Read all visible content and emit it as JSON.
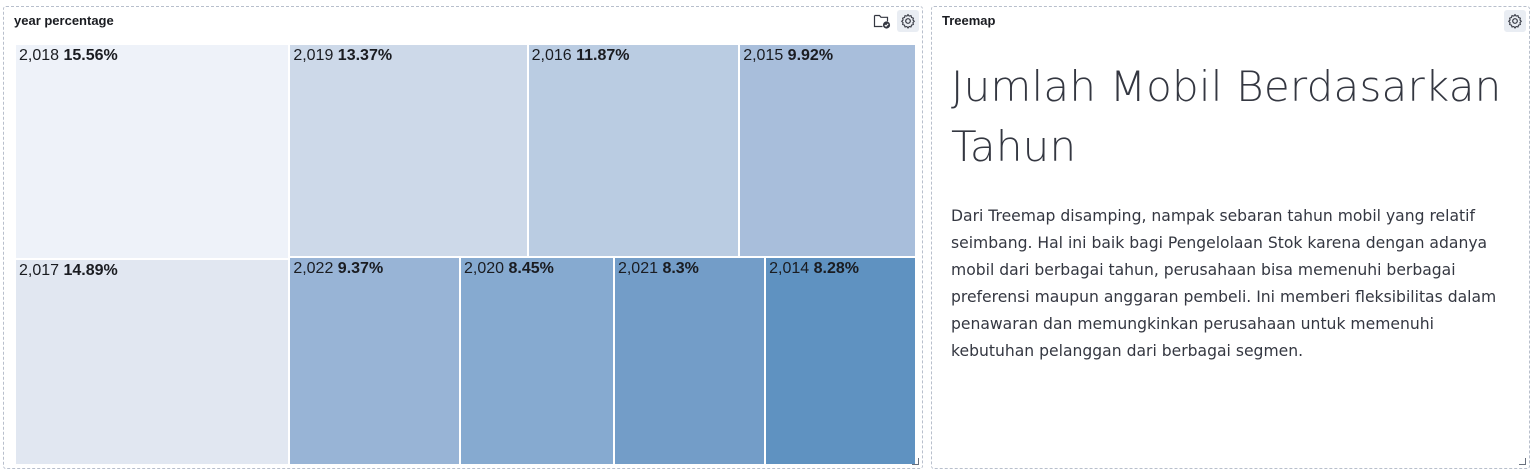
{
  "left_panel": {
    "title": "year percentage",
    "icons": [
      "folder-check-icon",
      "gear-icon"
    ]
  },
  "right_panel": {
    "title": "Treemap",
    "heading": "Jumlah Mobil Berdasarkan Tahun",
    "paragraph": "Dari Treemap disamping, nampak sebaran tahun mobil yang relatif seimbang. Hal ini baik bagi Pengelolaan Stok karena dengan adanya mobil dari berbagai tahun, perusahaan bisa memenuhi berbagai preferensi maupun anggaran pembeli. Ini memberi fleksibilitas dalam penawaran dan memungkinkan perusahaan untuk memenuhi kebutuhan pelanggan dari berbagai segmen.",
    "icons": [
      "gear-icon"
    ]
  },
  "chart_data": {
    "type": "treemap",
    "title": "year percentage",
    "items": [
      {
        "label": "2,018",
        "value": 15.56,
        "display": "15.56%",
        "color": "#eef2f9"
      },
      {
        "label": "2,017",
        "value": 14.89,
        "display": "14.89%",
        "color": "#e1e7f1"
      },
      {
        "label": "2,019",
        "value": 13.37,
        "display": "13.37%",
        "color": "#cdd9e9"
      },
      {
        "label": "2,016",
        "value": 11.87,
        "display": "11.87%",
        "color": "#bacce2"
      },
      {
        "label": "2,015",
        "value": 9.92,
        "display": "9.92%",
        "color": "#a8bedb"
      },
      {
        "label": "2,022",
        "value": 9.37,
        "display": "9.37%",
        "color": "#98b4d6"
      },
      {
        "label": "2,020",
        "value": 8.45,
        "display": "8.45%",
        "color": "#86aad0"
      },
      {
        "label": "2,021",
        "value": 8.3,
        "display": "8.3%",
        "color": "#739dc8"
      },
      {
        "label": "2,014",
        "value": 8.28,
        "display": "8.28%",
        "color": "#5f92c1"
      }
    ]
  }
}
